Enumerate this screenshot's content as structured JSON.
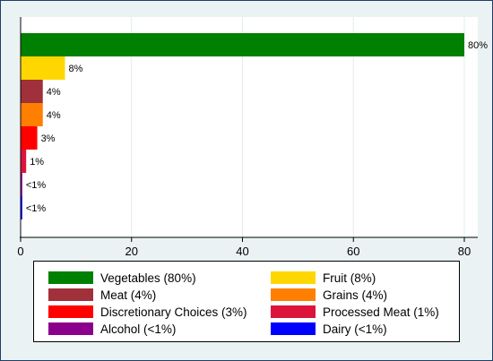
{
  "chart_data": {
    "type": "bar",
    "orientation": "horizontal",
    "categories": [
      "Vegetables",
      "Fruit",
      "Meat",
      "Grains",
      "Discretionary Choices",
      "Processed Meat",
      "Alcohol",
      "Dairy"
    ],
    "values": [
      80,
      8,
      4,
      4,
      3,
      1,
      0.3,
      0.3
    ],
    "data_labels": [
      "80%",
      "8%",
      "4%",
      "4%",
      "3%",
      "1%",
      "<1%",
      "<1%"
    ],
    "colors": [
      "#008000",
      "#ffd700",
      "#a0303a",
      "#ff7f00",
      "#ff0000",
      "#dc143c",
      "#8b008b",
      "#0000ff"
    ],
    "xlim": [
      0,
      82
    ],
    "xticks": [
      0,
      20,
      40,
      60,
      80
    ],
    "grid": true,
    "legend": {
      "position": "bottom",
      "entries": [
        "Vegetables (80%)",
        "Fruit (8%)",
        "Meat (4%)",
        "Grains (4%)",
        "Discretionary Choices (3%)",
        "Processed Meat (1%)",
        "Alcohol (<1%)",
        "Dairy (<1%)"
      ]
    }
  }
}
